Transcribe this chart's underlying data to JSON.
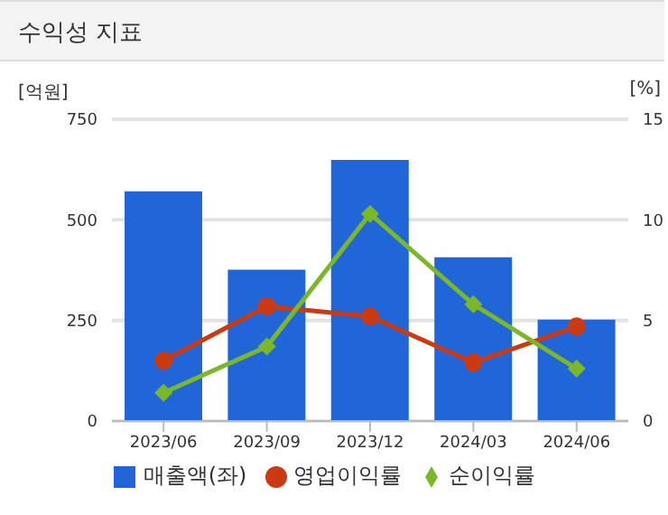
{
  "chart_data": {
    "type": "bar",
    "title": "수익성 지표",
    "ylabel": "[억원]",
    "y2label": "[%]",
    "categories": [
      "2023/06",
      "2023/09",
      "2023/12",
      "2024/03",
      "2024/06"
    ],
    "series": [
      {
        "name": "매출액(좌)",
        "color": "#2166d9",
        "values": [
          571,
          376,
          649,
          407,
          252
        ]
      },
      {
        "name": "영업이익률",
        "type": "line",
        "axis": "y2",
        "marker": "circle",
        "color": "#cc3a12",
        "values": [
          3.0,
          5.7,
          5.2,
          2.9,
          4.7
        ]
      },
      {
        "name": "순이익률",
        "type": "line",
        "axis": "y2",
        "marker": "diamond",
        "color": "#7ab82a",
        "values": [
          1.4,
          3.7,
          10.3,
          5.8,
          2.6
        ]
      }
    ],
    "ylim": [
      0,
      750
    ],
    "yticks": [
      0,
      250,
      500,
      750
    ],
    "y2lim": [
      0,
      15
    ],
    "y2ticks": [
      0,
      5,
      10,
      15
    ],
    "grid": "y",
    "legend": "bottom"
  }
}
